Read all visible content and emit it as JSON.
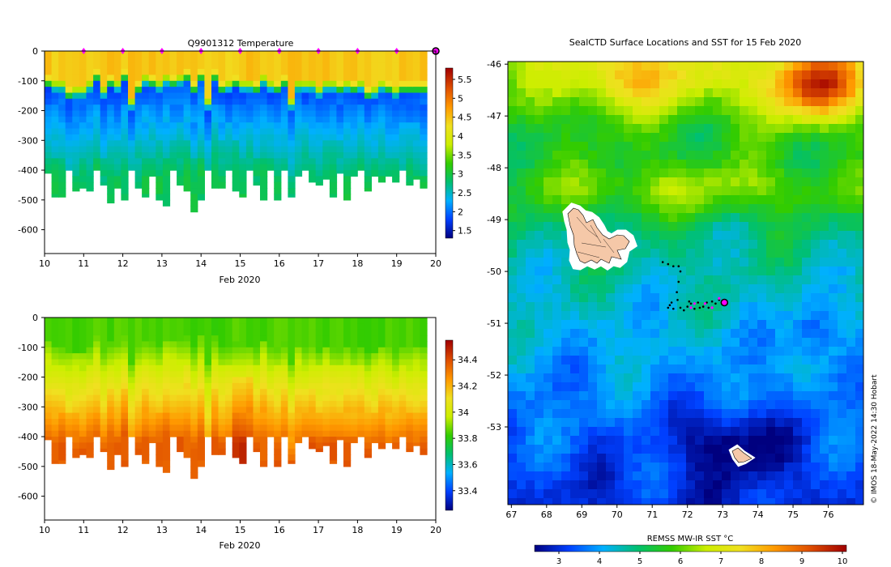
{
  "chart_data": [
    {
      "type": "heatmap",
      "title": "Q9901312  Temperature",
      "xlabel": "Feb 2020",
      "x_ticks": [
        "10",
        "11",
        "12",
        "13",
        "14",
        "15",
        "16",
        "17",
        "18",
        "19",
        "20"
      ],
      "y_ticks": [
        "0",
        "-100",
        "-200",
        "-300",
        "-400",
        "-500",
        "-600"
      ],
      "xlim": [
        10,
        20
      ],
      "ylim": [
        -680,
        0
      ],
      "colorbar_ticks": [
        "1.5",
        "2",
        "2.5",
        "3",
        "3.5",
        "4",
        "4.5",
        "5",
        "5.5"
      ],
      "colorbar_range": [
        1.3,
        5.8
      ],
      "colors": [
        "#00007f",
        "#0040ff",
        "#00b0ff",
        "#00c070",
        "#33cc00",
        "#ccee00",
        "#f0e020",
        "#ff9900",
        "#e05000",
        "#a00000"
      ],
      "profile_markers": [
        11,
        12,
        13,
        14,
        15,
        16,
        17,
        18,
        19
      ],
      "marker_color": "#ff00ff",
      "last_position_day": 20,
      "profile_depths": [
        410,
        490,
        490,
        400,
        470,
        460,
        470,
        400,
        450,
        510,
        460,
        500,
        400,
        460,
        490,
        420,
        500,
        520,
        400,
        450,
        470,
        540,
        500,
        400,
        460,
        460,
        400,
        470,
        490,
        400,
        450,
        500,
        400,
        500,
        400,
        490,
        420,
        400,
        440,
        450,
        430,
        490,
        410,
        500,
        420,
        400,
        470,
        420,
        440,
        420,
        440,
        400,
        450,
        430,
        460
      ],
      "mixed_layer_depths": [
        80,
        90,
        90,
        120,
        110,
        110,
        90,
        60,
        110,
        80,
        90,
        60,
        150,
        100,
        70,
        80,
        90,
        70,
        80,
        70,
        60,
        100,
        60,
        150,
        60,
        100,
        90,
        80,
        90,
        90,
        100,
        70,
        90,
        100,
        80,
        150,
        90,
        90,
        90,
        110,
        90,
        90,
        100,
        90,
        100,
        90,
        120,
        110,
        90,
        100,
        110,
        100,
        100,
        100,
        100
      ]
    },
    {
      "type": "heatmap",
      "title": "",
      "xlabel": "Feb 2020",
      "x_ticks": [
        "10",
        "11",
        "12",
        "13",
        "14",
        "15",
        "16",
        "17",
        "18",
        "19",
        "20"
      ],
      "y_ticks": [
        "0",
        "-100",
        "-200",
        "-300",
        "-400",
        "-500",
        "-600"
      ],
      "xlim": [
        10,
        20
      ],
      "ylim": [
        -680,
        0
      ],
      "colorbar_ticks": [
        "33.4",
        "33.6",
        "33.8",
        "34",
        "34.2",
        "34.4"
      ],
      "colorbar_range": [
        33.25,
        34.55
      ],
      "colors": [
        "#00007f",
        "#0040ff",
        "#00b0ff",
        "#00c070",
        "#33cc00",
        "#ccee00",
        "#f0e020",
        "#ff9900",
        "#e05000",
        "#a00000"
      ]
    },
    {
      "type": "heatmap",
      "title": "SealCTD Surface Locations and SST for 15 Feb 2020",
      "x_ticks": [
        "67",
        "68",
        "69",
        "70",
        "71",
        "72",
        "73",
        "74",
        "75",
        "76"
      ],
      "y_ticks": [
        "-46",
        "-47",
        "-48",
        "-49",
        "-50",
        "-51",
        "-52",
        "-53"
      ],
      "xlim": [
        66.9,
        77.0
      ],
      "ylim": [
        -54.5,
        -45.95
      ],
      "colorbar_label": "REMSS MW-IR SST °C",
      "colorbar_ticks": [
        "3",
        "4",
        "5",
        "6",
        "7",
        "8",
        "9",
        "10"
      ],
      "colorbar_range": [
        2.4,
        10.1
      ],
      "colors": [
        "#00007f",
        "#0040ff",
        "#00b0ff",
        "#00c070",
        "#33cc00",
        "#ccee00",
        "#f0e020",
        "#ff9900",
        "#e05000",
        "#a00000"
      ],
      "land_color": "#f5c8a8",
      "track_color": "#000000",
      "recent_color": "#ff00ff",
      "track_points": [
        [
          71.3,
          -49.82
        ],
        [
          71.45,
          -49.86
        ],
        [
          71.6,
          -49.9
        ],
        [
          71.75,
          -49.9
        ],
        [
          71.8,
          -50.0
        ],
        [
          71.75,
          -50.2
        ],
        [
          71.7,
          -50.4
        ],
        [
          71.72,
          -50.55
        ],
        [
          71.5,
          -50.65
        ],
        [
          71.6,
          -50.72
        ],
        [
          71.8,
          -50.7
        ],
        [
          72.0,
          -50.68
        ],
        [
          72.1,
          -50.62
        ],
        [
          72.3,
          -50.6
        ],
        [
          72.45,
          -50.68
        ],
        [
          72.55,
          -50.6
        ],
        [
          72.7,
          -50.58
        ],
        [
          72.9,
          -50.55
        ],
        [
          73.05,
          -50.6
        ],
        [
          71.55,
          -50.6
        ],
        [
          71.9,
          -50.75
        ],
        [
          72.2,
          -50.72
        ],
        [
          72.6,
          -50.7
        ],
        [
          71.45,
          -50.7
        ],
        [
          72.05,
          -50.58
        ],
        [
          72.35,
          -50.7
        ],
        [
          72.8,
          -50.62
        ]
      ],
      "recent_points": [
        [
          72.5,
          -50.62
        ],
        [
          72.7,
          -50.7
        ],
        [
          72.9,
          -50.52
        ],
        [
          73.0,
          -50.58
        ],
        [
          72.2,
          -50.62
        ],
        [
          72.1,
          -50.7
        ]
      ],
      "last_position": [
        73.05,
        -50.6
      ],
      "credit": "© IMOS 18-May-2022 14:30 Hobart"
    }
  ]
}
